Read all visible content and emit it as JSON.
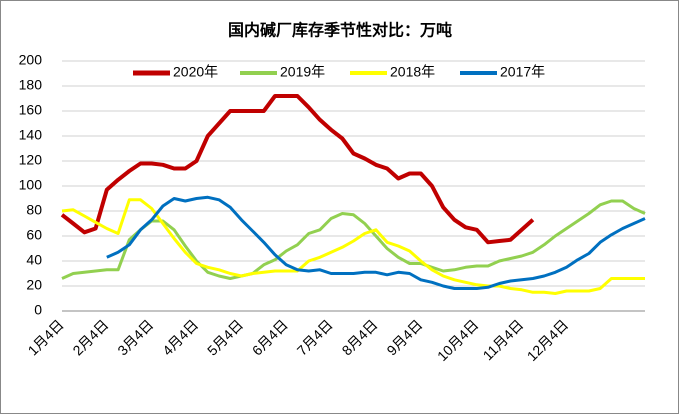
{
  "chart_data": {
    "type": "line",
    "title": "国内碱厂库存季节性对比：万吨",
    "categories": [
      "1月4日",
      null,
      null,
      null,
      "2月4日",
      null,
      null,
      null,
      "3月4日",
      null,
      null,
      null,
      "4月4日",
      null,
      null,
      null,
      "5月4日",
      null,
      null,
      null,
      "6月4日",
      null,
      null,
      null,
      "7月4日",
      null,
      null,
      null,
      "8月4日",
      null,
      null,
      null,
      "9月4日",
      null,
      null,
      null,
      null,
      "10月4日",
      null,
      null,
      null,
      "11月4日",
      null,
      null,
      null,
      "12月4日",
      null,
      null,
      null,
      null,
      null,
      null,
      null
    ],
    "series": [
      {
        "name": "2020年",
        "color": "#c00000",
        "width": 4,
        "values": [
          77,
          70,
          63,
          66,
          97,
          105,
          112,
          118,
          118,
          117,
          114,
          114,
          120,
          140,
          150,
          160,
          160,
          160,
          160,
          172,
          172,
          172,
          163,
          153,
          145,
          138,
          126,
          122,
          117,
          114,
          106,
          110,
          110,
          100,
          83,
          73,
          67,
          65,
          55,
          56,
          57,
          65,
          73,
          null,
          null,
          null,
          null,
          null,
          null,
          null,
          null,
          null,
          null
        ]
      },
      {
        "name": "2019年",
        "color": "#92d050",
        "width": 3,
        "values": [
          26,
          30,
          31,
          32,
          33,
          33,
          57,
          65,
          72,
          72,
          65,
          52,
          40,
          31,
          28,
          26,
          28,
          30,
          37,
          41,
          48,
          53,
          62,
          65,
          74,
          78,
          77,
          70,
          60,
          50,
          43,
          38,
          38,
          35,
          32,
          33,
          35,
          36,
          36,
          40,
          42,
          44,
          47,
          53,
          60,
          66,
          72,
          78,
          85,
          88,
          88,
          82,
          78
        ]
      },
      {
        "name": "2018年",
        "color": "#ffff00",
        "width": 3,
        "values": [
          80,
          81,
          76,
          71,
          66,
          62,
          89,
          89,
          82,
          70,
          58,
          47,
          38,
          35,
          33,
          30,
          28,
          30,
          31,
          32,
          32,
          32,
          40,
          43,
          47,
          51,
          56,
          62,
          65,
          55,
          52,
          48,
          40,
          33,
          28,
          25,
          23,
          21,
          20,
          20,
          18,
          17,
          15,
          15,
          14,
          16,
          16,
          16,
          18,
          26,
          26,
          26,
          26
        ]
      },
      {
        "name": "2017年",
        "color": "#0070c0",
        "width": 3,
        "values": [
          null,
          null,
          null,
          null,
          43,
          47,
          53,
          65,
          73,
          84,
          90,
          88,
          90,
          91,
          89,
          83,
          73,
          64,
          55,
          45,
          37,
          33,
          32,
          33,
          30,
          30,
          30,
          31,
          31,
          29,
          31,
          30,
          25,
          23,
          20,
          18,
          18,
          18,
          19,
          22,
          24,
          25,
          26,
          28,
          31,
          35,
          41,
          46,
          55,
          61,
          66,
          70,
          74
        ]
      }
    ],
    "ylim": [
      0,
      200
    ],
    "yticks": [
      0,
      20,
      40,
      60,
      80,
      100,
      120,
      140,
      160,
      180,
      200
    ],
    "grid": true,
    "legend": "top"
  }
}
